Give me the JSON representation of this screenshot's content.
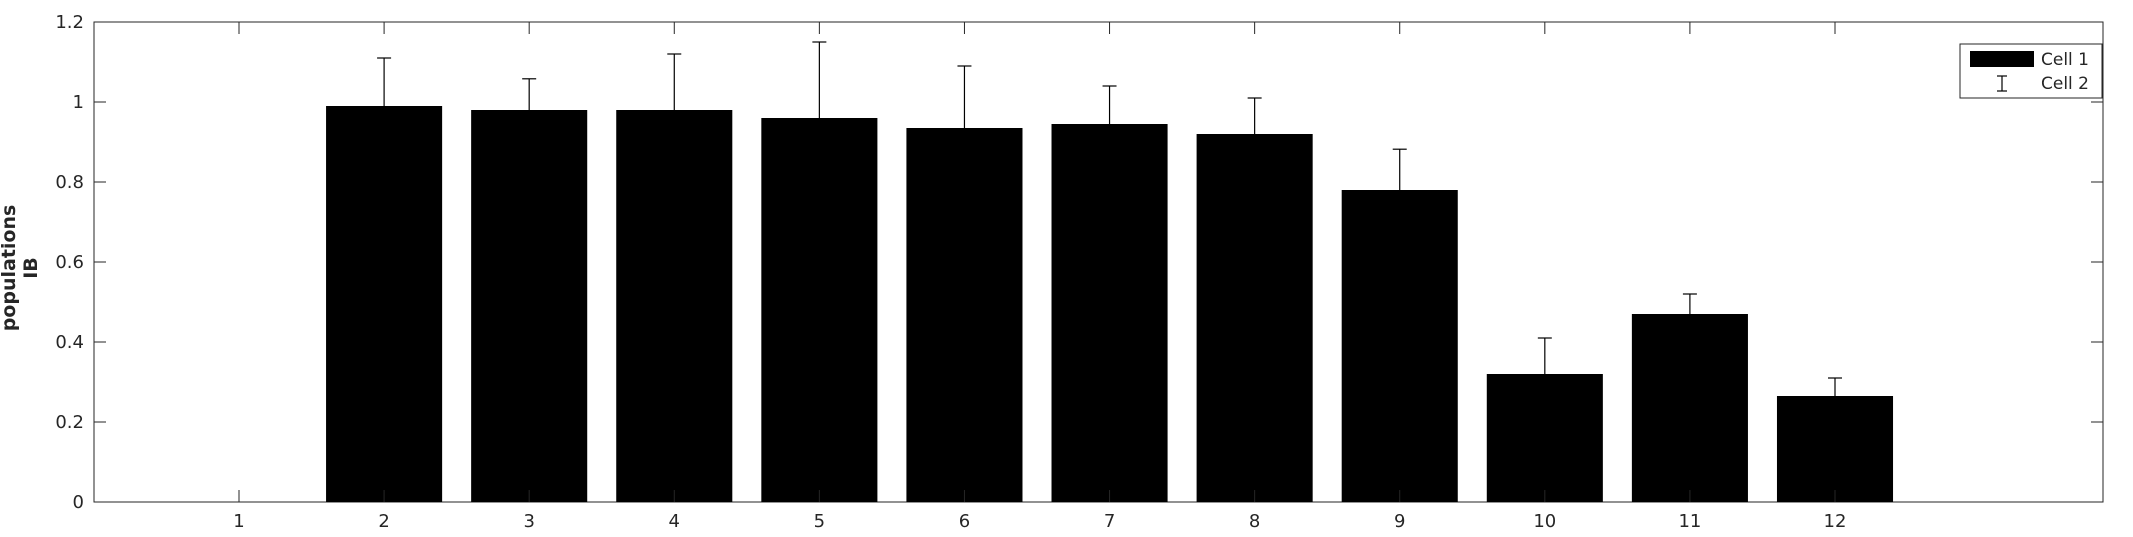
{
  "chart_data": {
    "type": "bar",
    "title": "",
    "xlabel": "",
    "ylabel_lines": [
      "populations",
      "IB"
    ],
    "categories": [
      "1",
      "2",
      "3",
      "4",
      "5",
      "6",
      "7",
      "8",
      "9",
      "10",
      "11",
      "12"
    ],
    "series": [
      {
        "name": "Cell 1",
        "values": [
          0,
          0.99,
          0.98,
          0.98,
          0.96,
          0.935,
          0.945,
          0.92,
          0.78,
          0.32,
          0.47,
          0.265
        ],
        "color": "#000000"
      }
    ],
    "error_bars": {
      "name": "Cell 2",
      "upper": [
        0,
        1.11,
        1.058,
        1.12,
        1.15,
        1.09,
        1.04,
        1.01,
        0.882,
        0.41,
        0.52,
        0.31
      ]
    },
    "ylim": [
      0,
      1.2
    ],
    "yticks": [
      "0",
      "0.2",
      "0.4",
      "0.6",
      "0.8",
      "1",
      "1.2"
    ],
    "ytick_values": [
      0,
      0.2,
      0.4,
      0.6,
      0.8,
      1.0,
      1.2
    ],
    "grid": false,
    "legend_position": "top-right",
    "legend": [
      "Cell 1",
      "Cell 2"
    ]
  }
}
